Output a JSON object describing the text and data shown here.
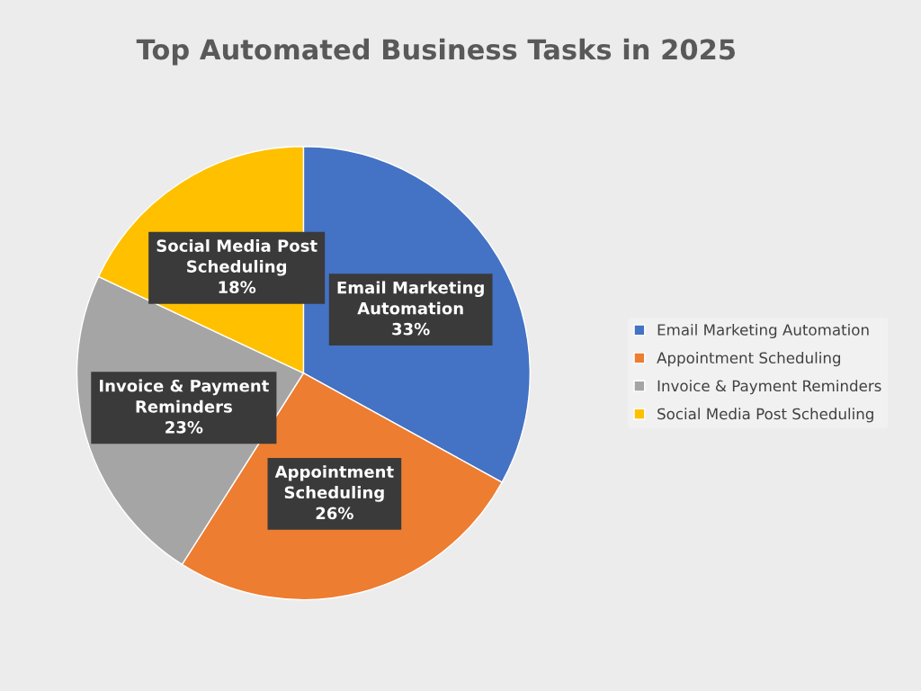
{
  "chart_data": {
    "type": "pie",
    "title": "Top Automated Business Tasks in 2025",
    "categories": [
      "Email Marketing Automation",
      "Appointment Scheduling",
      "Invoice & Payment Reminders",
      "Social Media Post Scheduling"
    ],
    "values": [
      33,
      26,
      23,
      18
    ],
    "value_labels": [
      "33%",
      "26%",
      "23%",
      "18%"
    ],
    "colors": [
      "#4472c4",
      "#ed7d31",
      "#a5a5a5",
      "#ffc000"
    ],
    "legend": "right"
  }
}
